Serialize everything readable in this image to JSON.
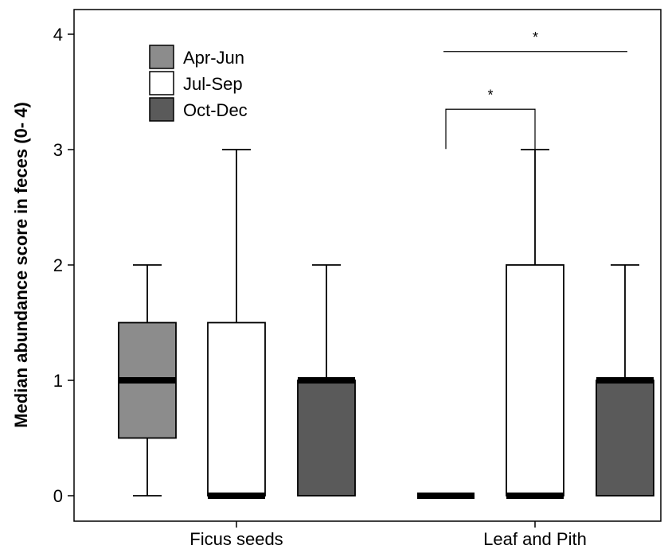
{
  "chart_data": {
    "type": "box",
    "ylabel": "Median abundance score in feces (0- 4)",
    "xlabel": "",
    "ylim": [
      0,
      4.25
    ],
    "yticks": [
      0,
      1,
      2,
      3,
      4
    ],
    "ytick_labels": [
      "0",
      "1",
      "2",
      "3",
      "4"
    ],
    "categories": [
      "Ficus seeds",
      "Leaf and Pith"
    ],
    "legend": {
      "placement": "top-left",
      "entries": [
        "Apr-Jun",
        "Jul-Sep",
        "Oct-Dec"
      ]
    },
    "series": [
      {
        "name": "Apr-Jun",
        "color": "#8c8c8c",
        "boxes": [
          {
            "category": "Ficus seeds",
            "min": 0,
            "q1": 0.5,
            "median": 1,
            "q3": 1.5,
            "max": 2
          },
          {
            "category": "Leaf and Pith",
            "min": 0,
            "q1": 0,
            "median": 0,
            "q3": 0,
            "max": 0
          }
        ]
      },
      {
        "name": "Jul-Sep",
        "color": "#ffffff",
        "boxes": [
          {
            "category": "Ficus seeds",
            "min": 0,
            "q1": 0,
            "median": 0,
            "q3": 1.5,
            "max": 3
          },
          {
            "category": "Leaf and Pith",
            "min": 0,
            "q1": 0,
            "median": 0,
            "q3": 2,
            "max": 3
          }
        ]
      },
      {
        "name": "Oct-Dec",
        "color": "#5a5a5a",
        "boxes": [
          {
            "category": "Ficus seeds",
            "min": 0,
            "q1": 0,
            "median": 1,
            "q3": 1,
            "max": 2
          },
          {
            "category": "Leaf and Pith",
            "min": 0,
            "q1": 0,
            "median": 1,
            "q3": 1,
            "max": 2
          }
        ]
      }
    ],
    "annotations": [
      {
        "text": "*",
        "category": "Leaf and Pith",
        "from": "Apr-Jun",
        "to": "Oct-Dec",
        "y": 3.85,
        "style": "line"
      },
      {
        "text": "*",
        "category": "Leaf and Pith",
        "from": "Apr-Jun",
        "to": "Jul-Sep",
        "y": 3.35,
        "style": "bracket"
      }
    ]
  }
}
